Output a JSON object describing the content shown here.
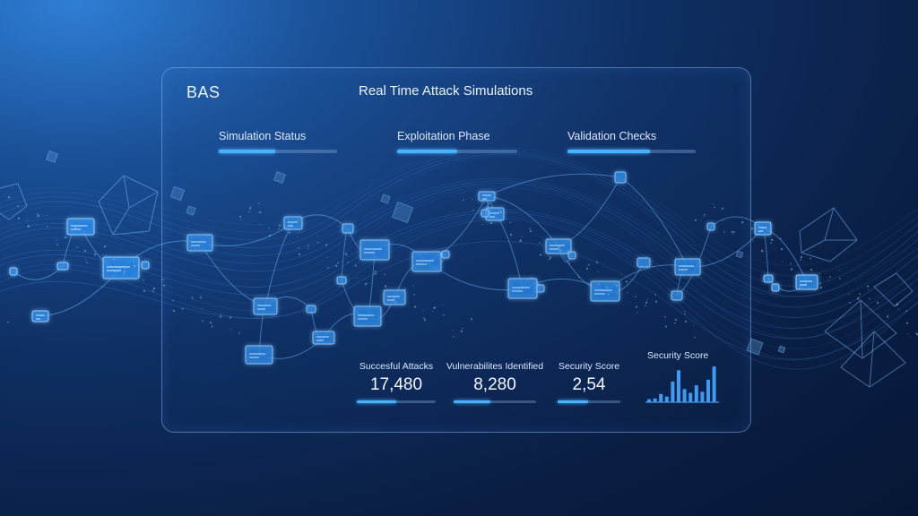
{
  "app": {
    "name": "BAS"
  },
  "header": {
    "title": "Real Time Attack Simulations"
  },
  "status_bars": [
    {
      "label": "Simulation Status",
      "progress": 0.48
    },
    {
      "label": "Exploitation Phase",
      "progress": 0.5
    },
    {
      "label": "Validation Checks",
      "progress": 0.64
    }
  ],
  "metrics": [
    {
      "label": "Succesful Attacks",
      "value": "17,480",
      "progress": 0.5
    },
    {
      "label": "Vulnerabilites Identified",
      "value": "8,280",
      "progress": 0.45
    },
    {
      "label": "Security Score",
      "value": "2,54",
      "progress": 0.48
    }
  ],
  "security_score_chart": {
    "title": "Security Score",
    "bars": [
      0.08,
      0.1,
      0.22,
      0.15,
      0.55,
      0.85,
      0.35,
      0.25,
      0.45,
      0.28,
      0.6,
      0.95
    ]
  },
  "colors": {
    "accent": "#48b2ff",
    "panel_border": "#96c8ff",
    "background": "#0a1f45"
  }
}
